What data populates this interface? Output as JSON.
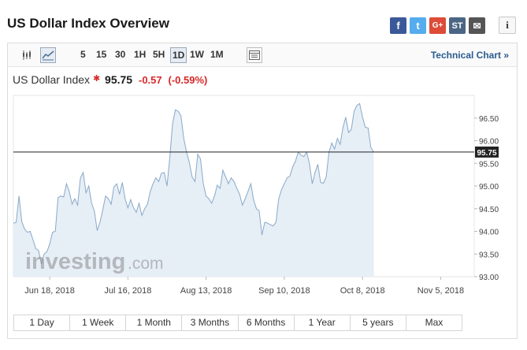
{
  "title": "US Dollar Index Overview",
  "share": {
    "facebook": "f",
    "twitter": "t",
    "googleplus": "G+",
    "stocktwits": "ST",
    "email": "✉",
    "info": "i"
  },
  "toolbar": {
    "timeframes": [
      "5",
      "15",
      "30",
      "1H",
      "5H",
      "1D",
      "1W",
      "1M"
    ],
    "active_timeframe": "1D",
    "technical_chart": "Technical Chart »"
  },
  "quote": {
    "name": "US Dollar Index",
    "star": "✱",
    "price": "95.75",
    "change": "-0.57",
    "change_pct": "(-0.59%)"
  },
  "watermark": {
    "brand": "investing",
    "suffix": ".com"
  },
  "ranges": [
    "1 Day",
    "1 Week",
    "1 Month",
    "3 Months",
    "6 Months",
    "1 Year",
    "5 years",
    "Max"
  ],
  "colors": {
    "line": "#89a9c7",
    "fill": "#e6eef6",
    "price_tag": "#222222",
    "negative": "#d72828"
  },
  "chart_data": {
    "type": "area",
    "current_value": 95.75,
    "ylim": [
      93.0,
      97.0
    ],
    "y_ticks": [
      "93.00",
      "93.50",
      "94.00",
      "94.50",
      "95.00",
      "95.50",
      "96.00",
      "96.50"
    ],
    "x_tick_labels": [
      "Jun 18, 2018",
      "Jul 16, 2018",
      "Aug 13, 2018",
      "Sep 10, 2018",
      "Oct 8, 2018",
      "Nov 5, 2018"
    ],
    "x_ticks_day": [
      13,
      41,
      69,
      97,
      125,
      153
    ],
    "x_range_day": [
      0,
      165
    ],
    "x_day_zero": "2018-06-05",
    "series": [
      {
        "values": [
          [
            0,
            94.18
          ],
          [
            1,
            94.2
          ],
          [
            2,
            94.78
          ],
          [
            3,
            94.22
          ],
          [
            4,
            94.05
          ],
          [
            5,
            93.98
          ],
          [
            6,
            94.0
          ],
          [
            7,
            93.82
          ],
          [
            8,
            93.62
          ],
          [
            9,
            93.58
          ],
          [
            10,
            93.28
          ],
          [
            11,
            93.5
          ],
          [
            12,
            93.55
          ],
          [
            13,
            93.72
          ],
          [
            14,
            93.98
          ],
          [
            15,
            94.0
          ],
          [
            16,
            94.75
          ],
          [
            17,
            94.78
          ],
          [
            18,
            94.76
          ],
          [
            19,
            95.05
          ],
          [
            20,
            94.88
          ],
          [
            21,
            94.6
          ],
          [
            22,
            94.72
          ],
          [
            23,
            94.58
          ],
          [
            24,
            95.18
          ],
          [
            25,
            95.3
          ],
          [
            26,
            94.85
          ],
          [
            27,
            95.0
          ],
          [
            28,
            94.62
          ],
          [
            29,
            94.45
          ],
          [
            30,
            94.02
          ],
          [
            31,
            94.2
          ],
          [
            32,
            94.48
          ],
          [
            33,
            94.78
          ],
          [
            34,
            94.72
          ],
          [
            35,
            94.6
          ],
          [
            36,
            94.98
          ],
          [
            37,
            95.05
          ],
          [
            38,
            94.82
          ],
          [
            39,
            95.08
          ],
          [
            40,
            94.72
          ],
          [
            41,
            94.52
          ],
          [
            42,
            94.7
          ],
          [
            43,
            94.52
          ],
          [
            44,
            94.42
          ],
          [
            45,
            94.62
          ],
          [
            46,
            94.35
          ],
          [
            47,
            94.5
          ],
          [
            48,
            94.6
          ],
          [
            49,
            94.88
          ],
          [
            50,
            95.05
          ],
          [
            51,
            95.18
          ],
          [
            52,
            95.1
          ],
          [
            53,
            95.28
          ],
          [
            54,
            95.3
          ],
          [
            55,
            95.0
          ],
          [
            56,
            95.62
          ],
          [
            57,
            96.38
          ],
          [
            58,
            96.68
          ],
          [
            59,
            96.65
          ],
          [
            60,
            96.55
          ],
          [
            61,
            96.05
          ],
          [
            62,
            95.75
          ],
          [
            63,
            95.52
          ],
          [
            64,
            95.2
          ],
          [
            65,
            95.1
          ],
          [
            66,
            95.7
          ],
          [
            67,
            95.6
          ],
          [
            68,
            95.05
          ],
          [
            69,
            94.78
          ],
          [
            70,
            94.72
          ],
          [
            71,
            94.62
          ],
          [
            72,
            94.78
          ],
          [
            73,
            95.02
          ],
          [
            74,
            94.95
          ],
          [
            75,
            95.35
          ],
          [
            76,
            95.2
          ],
          [
            77,
            95.05
          ],
          [
            78,
            95.18
          ],
          [
            79,
            95.1
          ],
          [
            80,
            94.95
          ],
          [
            81,
            94.82
          ],
          [
            82,
            94.58
          ],
          [
            83,
            94.72
          ],
          [
            84,
            94.88
          ],
          [
            85,
            95.05
          ],
          [
            86,
            94.7
          ],
          [
            87,
            94.5
          ],
          [
            88,
            94.45
          ],
          [
            89,
            93.92
          ],
          [
            90,
            94.2
          ],
          [
            91,
            94.18
          ],
          [
            92,
            94.15
          ],
          [
            93,
            94.12
          ],
          [
            94,
            94.2
          ],
          [
            95,
            94.72
          ],
          [
            96,
            94.92
          ],
          [
            97,
            95.05
          ],
          [
            98,
            95.18
          ],
          [
            99,
            95.22
          ],
          [
            100,
            95.42
          ],
          [
            101,
            95.55
          ],
          [
            102,
            95.75
          ],
          [
            103,
            95.68
          ],
          [
            104,
            95.65
          ],
          [
            105,
            95.75
          ],
          [
            106,
            95.5
          ],
          [
            107,
            95.05
          ],
          [
            108,
            95.3
          ],
          [
            109,
            95.48
          ],
          [
            110,
            95.08
          ],
          [
            111,
            95.06
          ],
          [
            112,
            95.2
          ],
          [
            113,
            95.75
          ],
          [
            114,
            95.95
          ],
          [
            115,
            95.82
          ],
          [
            116,
            96.05
          ],
          [
            117,
            95.92
          ],
          [
            118,
            96.3
          ],
          [
            119,
            96.52
          ],
          [
            120,
            96.18
          ],
          [
            121,
            96.25
          ],
          [
            122,
            96.65
          ],
          [
            123,
            96.78
          ],
          [
            124,
            96.82
          ],
          [
            125,
            96.52
          ],
          [
            126,
            96.3
          ],
          [
            127,
            96.28
          ],
          [
            128,
            95.85
          ],
          [
            129,
            95.75
          ]
        ]
      }
    ]
  }
}
